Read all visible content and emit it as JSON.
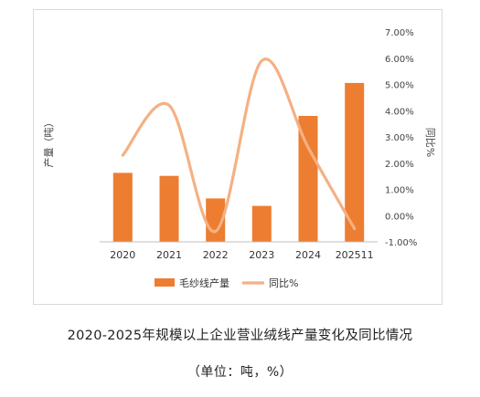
{
  "chart_data": {
    "type": "bar+line",
    "categories": [
      "2020",
      "2021",
      "2022",
      "2023",
      "2024",
      "202511"
    ],
    "series": [
      {
        "name": "毛纱线产量",
        "type": "bar",
        "axis": "left",
        "color": "#ed7d31",
        "values": [
          2.3,
          2.2,
          1.45,
          1.2,
          4.2,
          5.3
        ]
      },
      {
        "name": "同比%",
        "type": "line",
        "axis": "right",
        "color": "#f4b183",
        "values": [
          2.3,
          4.2,
          -0.6,
          5.9,
          2.6,
          -0.5
        ]
      }
    ],
    "ylabel_left": "产量（吨）",
    "ylabel_right": "同比%",
    "y_right_ticks": [
      "7.00%",
      "6.00%",
      "5.00%",
      "4.00%",
      "3.00%",
      "2.00%",
      "1.00%",
      "0.00%",
      "-1.00%"
    ],
    "ylim_right": [
      -1,
      7
    ],
    "ylim_left": [
      0,
      7
    ],
    "legend_position": "bottom"
  },
  "caption": {
    "title": "2020-2025年规模以上企业营业绒线产量变化及同比情况",
    "unit": "（单位：吨，%）"
  }
}
